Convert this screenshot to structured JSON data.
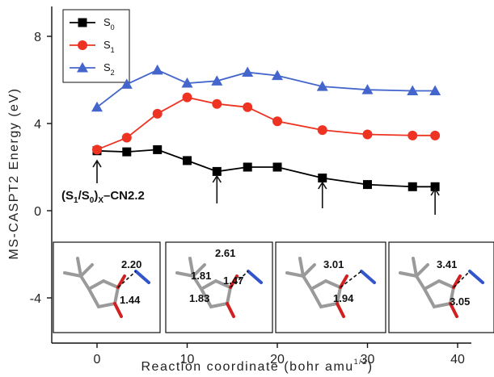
{
  "chart_data": {
    "type": "line",
    "xlabel": "Reaction coordinate (bohr amu",
    "xlabel_sup": "1/2",
    "xlabel_close": ")",
    "ylabel": "MS-CASPT2 Energy (eV)",
    "xlim": [
      -5,
      43
    ],
    "ylim": [
      -5,
      9
    ],
    "x_ticks": [
      0,
      10,
      20,
      30,
      40
    ],
    "y_ticks": [
      -4,
      0,
      4,
      8
    ],
    "legend_position": "top-left",
    "grid": false,
    "series": [
      {
        "name": "S0",
        "name_main": "S",
        "name_sub": "0",
        "color": "#000000",
        "marker": "square",
        "x": [
          0,
          3.3,
          6.7,
          10,
          13.3,
          16.7,
          20,
          25,
          30,
          35,
          37.5
        ],
        "y": [
          2.75,
          2.7,
          2.8,
          2.3,
          1.8,
          2.0,
          2.0,
          1.5,
          1.2,
          1.1,
          1.1
        ]
      },
      {
        "name": "S1",
        "name_main": "S",
        "name_sub": "1",
        "color": "#ee3322",
        "marker": "circle",
        "x": [
          0,
          3.3,
          6.7,
          10,
          13.3,
          16.7,
          20,
          25,
          30,
          35,
          37.5
        ],
        "y": [
          2.8,
          3.35,
          4.45,
          5.2,
          4.9,
          4.75,
          4.1,
          3.7,
          3.5,
          3.45,
          3.45
        ]
      },
      {
        "name": "S2",
        "name_main": "S",
        "name_sub": "2",
        "color": "#4466cc",
        "marker": "triangle",
        "x": [
          0,
          3.3,
          6.7,
          10,
          13.3,
          16.7,
          20,
          25,
          30,
          35,
          37.5
        ],
        "y": [
          4.75,
          5.8,
          6.45,
          5.85,
          5.95,
          6.35,
          6.2,
          5.7,
          5.55,
          5.5,
          5.5
        ]
      }
    ],
    "arrows_at_x": [
      0,
      13.3,
      25,
      37.5
    ],
    "annotation": {
      "label_open": "(S",
      "sub1": "1",
      "label_mid": "/S",
      "sub2": "0",
      "label_close": ")",
      "sub3": "X",
      "label_tail": "–CN2.2"
    },
    "insets": [
      {
        "labels": [
          "2.20",
          "1.44"
        ]
      },
      {
        "labels": [
          "2.61",
          "1.81",
          "1.47",
          "1.83"
        ]
      },
      {
        "labels": [
          "3.01",
          "1.94"
        ]
      },
      {
        "labels": [
          "3.41",
          "3.05"
        ]
      }
    ]
  }
}
